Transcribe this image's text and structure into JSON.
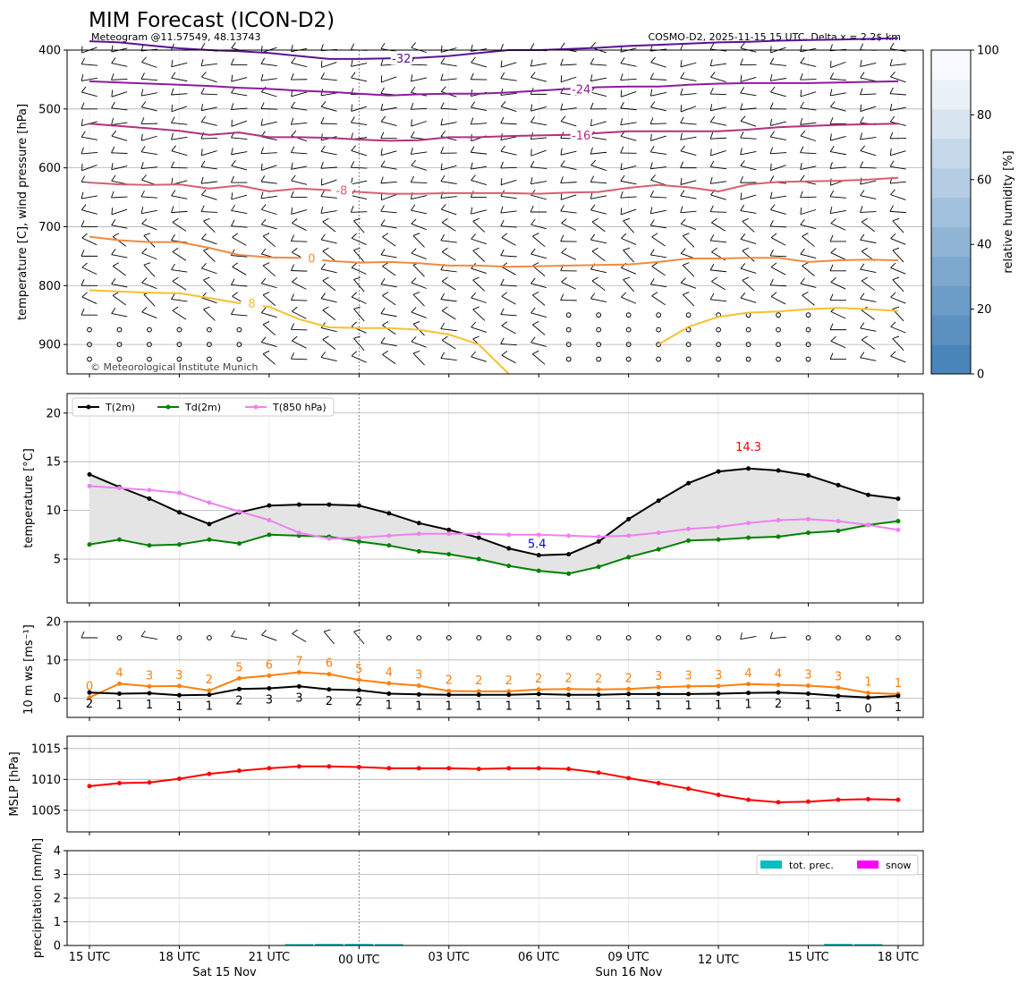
{
  "header": {
    "title": "MIM Forecast (ICON-D2)",
    "subtitle_left": "Meteogram @11.57549, 48.13743",
    "subtitle_right": "COSMO-D2, 2025-11-15 15 UTC, Delta x = 2.2$ km",
    "copyright": "© Meteorological Institute Munich"
  },
  "time_axis": {
    "tick_labels": [
      "15 UTC",
      "18 UTC",
      "21 UTC",
      "00 UTC",
      "03 UTC",
      "06 UTC",
      "09 UTC",
      "12 UTC",
      "15 UTC",
      "18 UTC"
    ],
    "date_labels": [
      "Sat 15 Nov",
      "Sun 16 Nov"
    ],
    "hours": [
      0,
      1,
      2,
      3,
      4,
      5,
      6,
      7,
      8,
      9,
      10,
      11,
      12,
      13,
      14,
      15,
      16,
      17,
      18,
      19,
      20,
      21,
      22,
      23,
      24,
      25,
      26,
      27
    ],
    "midnight_hour": 9
  },
  "colors": {
    "t2m": "#000000",
    "td2m": "#008000",
    "t850": "#ee82ee",
    "mslp": "#ff0000",
    "gust": "#ff7f0e",
    "annot_max": "#ff0000",
    "annot_min": "#0000ff",
    "precip": "#00bfbf",
    "snow": "#ff00ff"
  },
  "chart_data": [
    {
      "id": "upper-air",
      "type": "contour",
      "ylabel": "temperature [C], wind pressure [hPa]",
      "ylim": [
        950,
        400
      ],
      "yticks": [
        400,
        500,
        600,
        700,
        800,
        900
      ],
      "colorbar": {
        "label": "relative humidity [%]",
        "range": [
          0,
          100
        ],
        "ticks": [
          0,
          20,
          40,
          60,
          80,
          100
        ],
        "colors": [
          "#4a85ba",
          "#5b91c1",
          "#6c9dc8",
          "#7ea9ce",
          "#90b5d5",
          "#a2c1dc",
          "#b4cde3",
          "#c6d9ea",
          "#d8e5f0",
          "#eaf1f7",
          "#f7fbff"
        ]
      },
      "isotherms": [
        {
          "label": "-32",
          "color": "#5b1294",
          "values": [
            385,
            387,
            392,
            397,
            400,
            402,
            405,
            410,
            415,
            415,
            414,
            413,
            410,
            405,
            400,
            400,
            398,
            396,
            393,
            391,
            389,
            387,
            386,
            384,
            383,
            382,
            381,
            380
          ]
        },
        {
          "label": "-24",
          "color": "#8d1b9e",
          "values": [
            453,
            455,
            457,
            459,
            461,
            464,
            466,
            469,
            471,
            474,
            477,
            475,
            474,
            474,
            472,
            469,
            466,
            463,
            462,
            462,
            459,
            457,
            456,
            456,
            456,
            455,
            454,
            453
          ]
        },
        {
          "label": "-16",
          "color": "#b2307f",
          "values": [
            525,
            529,
            533,
            537,
            544,
            540,
            548,
            548,
            549,
            552,
            554,
            553,
            548,
            548,
            546,
            545,
            544,
            541,
            538,
            538,
            538,
            538,
            535,
            531,
            529,
            527,
            526,
            525
          ]
        },
        {
          "label": "-8",
          "color": "#d95f6e",
          "values": [
            625,
            628,
            629,
            628,
            635,
            630,
            640,
            635,
            638,
            641,
            644,
            644,
            643,
            643,
            643,
            644,
            642,
            641,
            634,
            629,
            633,
            640,
            628,
            624,
            623,
            622,
            620,
            617
          ]
        },
        {
          "label": "0",
          "color": "#f08a42",
          "values": [
            717,
            723,
            726,
            726,
            736,
            748,
            752,
            753,
            758,
            761,
            760,
            762,
            766,
            766,
            768,
            767,
            766,
            765,
            764,
            760,
            754,
            754,
            753,
            753,
            760,
            757,
            756,
            757
          ]
        },
        {
          "label": "8",
          "color": "#f6c12f",
          "values": [
            808,
            810,
            812,
            813,
            821,
            830,
            836,
            857,
            871,
            872,
            872,
            875,
            883,
            900,
            950,
            null,
            null,
            null,
            null,
            900,
            870,
            853,
            846,
            844,
            840,
            838,
            840,
            843
          ]
        }
      ],
      "wind_levels": [
        400,
        425,
        450,
        475,
        500,
        525,
        550,
        575,
        600,
        625,
        650,
        675,
        700,
        725,
        750,
        775,
        800,
        825,
        850,
        875,
        900,
        925
      ]
    },
    {
      "id": "temperature",
      "type": "line",
      "ylabel": "temperature [$^\\circ$C]",
      "ylim": [
        0.5,
        22
      ],
      "yticks": [
        5,
        10,
        15,
        20
      ],
      "series": [
        {
          "name": "T(2m)",
          "values": [
            13.7,
            12.4,
            11.2,
            9.8,
            8.6,
            9.8,
            10.5,
            10.6,
            10.6,
            10.5,
            9.7,
            8.7,
            8.0,
            7.2,
            6.1,
            5.4,
            5.5,
            6.8,
            9.1,
            11.0,
            12.8,
            14.0,
            14.3,
            14.1,
            13.6,
            12.6,
            11.6,
            11.2
          ]
        },
        {
          "name": "Td(2m)",
          "values": [
            6.5,
            7.0,
            6.4,
            6.5,
            7.0,
            6.6,
            7.5,
            7.4,
            7.3,
            6.8,
            6.4,
            5.8,
            5.5,
            5.0,
            4.3,
            3.8,
            3.5,
            4.2,
            5.2,
            6.0,
            6.9,
            7.0,
            7.2,
            7.3,
            7.7,
            7.9,
            8.5,
            8.9
          ]
        },
        {
          "name": "T(850 hPa)",
          "values": [
            12.5,
            12.3,
            12.1,
            11.8,
            10.8,
            9.9,
            9.0,
            7.7,
            7.1,
            7.2,
            7.4,
            7.6,
            7.6,
            7.6,
            7.5,
            7.5,
            7.4,
            7.3,
            7.4,
            7.7,
            8.1,
            8.3,
            8.7,
            9.0,
            9.1,
            8.9,
            8.5,
            8.0
          ]
        }
      ],
      "annotations": [
        {
          "text": "14.3",
          "hour": 22,
          "value": 14.3,
          "kind": "max"
        },
        {
          "text": "5.4",
          "hour": 15,
          "value": 5.4,
          "kind": "min"
        }
      ]
    },
    {
      "id": "wind",
      "type": "line",
      "ylabel": "10 m ws [ms$^{-1}$]",
      "ylim": [
        -5,
        20
      ],
      "yticks": [
        0,
        10,
        20
      ],
      "series": [
        {
          "name": "ws",
          "values": [
            1.5,
            1.2,
            1.3,
            0.8,
            0.9,
            2.4,
            2.6,
            3.1,
            2.3,
            2.1,
            1.2,
            1.0,
            0.9,
            0.9,
            0.9,
            1.1,
            0.9,
            0.9,
            1.1,
            1.1,
            1.1,
            1.2,
            1.4,
            1.5,
            1.2,
            0.6,
            0.2,
            0.6
          ]
        },
        {
          "name": "gust",
          "values": [
            0.2,
            3.8,
            3.1,
            3.2,
            2.0,
            5.2,
            5.9,
            6.8,
            6.3,
            4.8,
            3.9,
            3.3,
            1.9,
            1.8,
            1.8,
            2.3,
            2.4,
            2.3,
            2.4,
            2.9,
            3.1,
            3.2,
            3.7,
            3.5,
            3.3,
            2.8,
            1.4,
            1.1
          ]
        }
      ],
      "ws_labels": [
        "2",
        "1",
        "1",
        "1",
        "1",
        "2",
        "3",
        "3",
        "2",
        "2",
        "1",
        "1",
        "1",
        "1",
        "1",
        "1",
        "1",
        "1",
        "1",
        "1",
        "1",
        "1",
        "1",
        "2",
        "1",
        "1",
        "0",
        "1"
      ],
      "gust_labels": [
        "0",
        "4",
        "3",
        "3",
        "2",
        "5",
        "6",
        "7",
        "6",
        "5",
        "4",
        "3",
        "2",
        "2",
        "2",
        "2",
        "2",
        "2",
        "2",
        "3",
        "3",
        "3",
        "4",
        "4",
        "3",
        "3",
        "1",
        "1"
      ],
      "barb_directions": [
        270,
        null,
        280,
        null,
        null,
        280,
        290,
        300,
        320,
        320,
        null,
        null,
        null,
        null,
        null,
        null,
        null,
        null,
        null,
        null,
        null,
        null,
        260,
        265,
        null,
        null,
        null,
        null
      ]
    },
    {
      "id": "mslp",
      "type": "line",
      "ylabel": "MSLP [hPa]",
      "ylim": [
        1001.5,
        1017
      ],
      "yticks": [
        1005,
        1010,
        1015
      ],
      "series": [
        {
          "name": "MSLP",
          "values": [
            1008.9,
            1009.4,
            1009.5,
            1010.1,
            1010.9,
            1011.4,
            1011.8,
            1012.1,
            1012.1,
            1012.0,
            1011.8,
            1011.8,
            1011.8,
            1011.7,
            1011.8,
            1011.8,
            1011.7,
            1011.1,
            1010.2,
            1009.4,
            1008.5,
            1007.5,
            1006.7,
            1006.3,
            1006.4,
            1006.7,
            1006.8,
            1006.7
          ]
        }
      ]
    },
    {
      "id": "precipitation",
      "type": "bar",
      "ylabel": "precipitation [mm/h]",
      "ylim": [
        0,
        4
      ],
      "yticks": [
        0,
        1,
        2,
        3,
        4
      ],
      "legend": [
        "tot. prec.",
        "snow"
      ],
      "series": [
        {
          "name": "tot. prec.",
          "values": [
            0,
            0,
            0,
            0,
            0,
            0,
            0,
            0.02,
            0.03,
            0.03,
            0.02,
            0,
            0,
            0,
            0,
            0,
            0,
            0,
            0,
            0,
            0,
            0,
            0,
            0,
            0,
            0.03,
            0.02,
            0
          ]
        },
        {
          "name": "snow",
          "values": [
            0,
            0,
            0,
            0,
            0,
            0,
            0,
            0,
            0,
            0,
            0,
            0,
            0,
            0,
            0,
            0,
            0,
            0,
            0,
            0,
            0,
            0,
            0,
            0,
            0,
            0,
            0,
            0
          ]
        }
      ]
    }
  ]
}
